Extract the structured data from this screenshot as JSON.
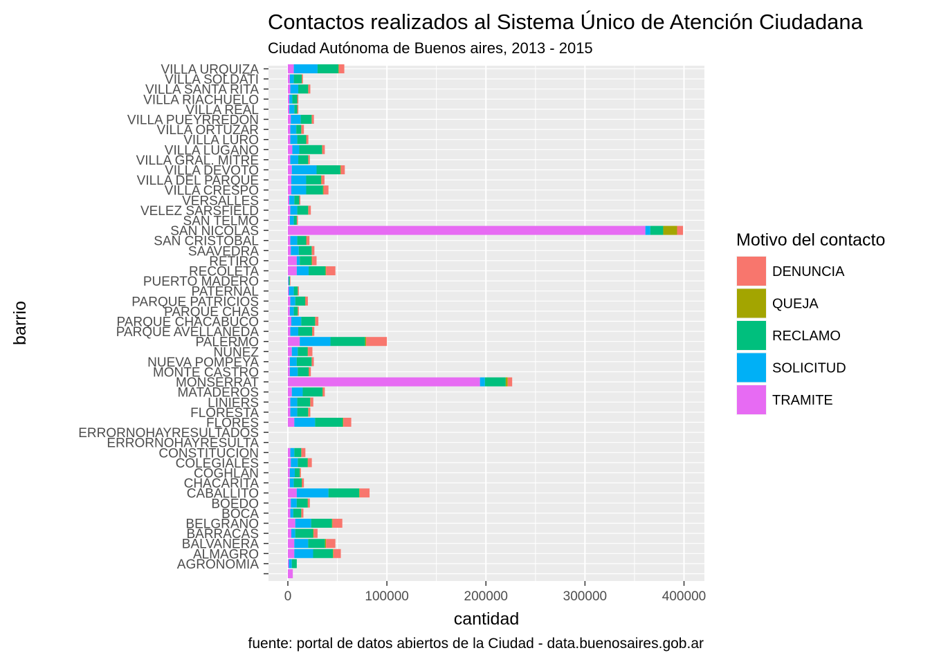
{
  "chart_data": {
    "type": "bar",
    "orientation": "horizontal",
    "stacked": true,
    "title": "Contactos realizados al Sistema Único de Atención Ciudadana",
    "subtitle": "Ciudad Autónoma de Buenos aires, 2013 - 2015",
    "xlabel": "cantidad",
    "ylabel": "barrio",
    "caption": "fuente: portal de datos abiertos de la Ciudad - data.buenosaires.gob.ar",
    "xlim": [
      0,
      420000
    ],
    "xticks": [
      0,
      100000,
      200000,
      300000,
      400000
    ],
    "xtick_labels": [
      "0",
      "100000",
      "200000",
      "300000",
      "400000"
    ],
    "grid": true,
    "legend": {
      "title": "Motivo del contacto",
      "position": "right"
    },
    "categories": [
      "",
      "AGRONOMIA",
      "ALMAGRO",
      "BALVANERA",
      "BARRACAS",
      "BELGRANO",
      "BOCA",
      "BOEDO",
      "CABALLITO",
      "CHACARITA",
      "COGHLAN",
      "COLEGIALES",
      "CONSTITUCION",
      "ERRORNOHAYRESULTA",
      "ERRORNOHAYRESULTADOS",
      "FLORES",
      "FLORESTA",
      "LINIERS",
      "MATADEROS",
      "MONSERRAT",
      "MONTE CASTRO",
      "NUEVA POMPEYA",
      "NUÑEZ",
      "PALERMO",
      "PARQUE AVELLANEDA",
      "PARQUE CHACABUCO",
      "PARQUE CHAS",
      "PARQUE PATRICIOS",
      "PATERNAL",
      "PUERTO MADERO",
      "RECOLETA",
      "RETIRO",
      "SAAVEDRA",
      "SAN CRISTOBAL",
      "SAN NICOLAS",
      "SAN TELMO",
      "VELEZ SARSFIELD",
      "VERSALLES",
      "VILLA CRESPO",
      "VILLA DEL PARQUE",
      "VILLA DEVOTO",
      "VILLA GRAL. MITRE",
      "VILLA LUGANO",
      "VILLA LURO",
      "VILLA ORTUZAR",
      "VILLA PUEYRREDON",
      "VILLA REAL",
      "VILLA RIACHUELO",
      "VILLA SANTA RITA",
      "VILLA SOLDATI",
      "VILLA URQUIZA"
    ],
    "series": [
      {
        "name": "TRAMITE",
        "color": "#E76BF3",
        "values": [
          5000,
          1000,
          6500,
          6500,
          3500,
          7500,
          2500,
          3000,
          9000,
          2000,
          2000,
          3000,
          2500,
          0,
          0,
          6500,
          2500,
          2500,
          4000,
          194000,
          2000,
          2000,
          4000,
          12000,
          2500,
          3500,
          2000,
          2500,
          1000,
          500,
          9000,
          9000,
          3000,
          2500,
          361000,
          2000,
          2500,
          1500,
          3500,
          3500,
          4000,
          2500,
          4500,
          2500,
          2500,
          3000,
          1500,
          1500,
          2500,
          2000,
          6000
        ]
      },
      {
        "name": "SOLICITUD",
        "color": "#00B0F6",
        "values": [
          0,
          3000,
          19000,
          14000,
          4000,
          16000,
          3000,
          6000,
          32000,
          4000,
          5000,
          7000,
          4000,
          0,
          0,
          21000,
          7000,
          7000,
          11000,
          5000,
          8000,
          7000,
          6000,
          31000,
          8000,
          10000,
          4000,
          5000,
          5000,
          500,
          12000,
          3000,
          8000,
          7000,
          5000,
          4000,
          7000,
          5000,
          15000,
          15000,
          25000,
          8000,
          7000,
          7000,
          6000,
          10000,
          5000,
          3000,
          8000,
          4000,
          24000
        ]
      },
      {
        "name": "RECLAMO",
        "color": "#00BF7D",
        "values": [
          0,
          5000,
          20000,
          17000,
          18000,
          21000,
          8000,
          11000,
          31000,
          8000,
          5000,
          10000,
          7000,
          0,
          0,
          28000,
          11000,
          13000,
          20000,
          21000,
          11000,
          15000,
          10000,
          35000,
          14000,
          14000,
          4000,
          10000,
          4000,
          1000,
          17000,
          12000,
          13000,
          9000,
          13000,
          3000,
          11000,
          5000,
          17000,
          15000,
          24000,
          10000,
          23000,
          9000,
          5000,
          11000,
          3000,
          5000,
          10000,
          8000,
          21000
        ]
      },
      {
        "name": "QUEJA",
        "color": "#A3A500",
        "values": [
          0,
          0,
          500,
          1000,
          500,
          500,
          200,
          200,
          500,
          200,
          200,
          200,
          200,
          0,
          0,
          500,
          200,
          200,
          300,
          2000,
          200,
          200,
          300,
          1000,
          200,
          300,
          100,
          200,
          100,
          100,
          500,
          500,
          300,
          300,
          14000,
          100,
          200,
          100,
          500,
          500,
          500,
          200,
          300,
          200,
          200,
          300,
          100,
          100,
          200,
          200,
          500
        ]
      },
      {
        "name": "DENUNCIA",
        "color": "#F8766D",
        "values": [
          0,
          0,
          7500,
          9500,
          4000,
          10000,
          2000,
          2000,
          10000,
          2000,
          1000,
          4000,
          4000,
          0,
          0,
          8000,
          2000,
          3000,
          2000,
          4500,
          2000,
          2000,
          4500,
          21000,
          2000,
          3000,
          1000,
          2500,
          1000,
          500,
          9500,
          4500,
          2500,
          3000,
          6000,
          1000,
          2500,
          1000,
          5000,
          3000,
          4000,
          1500,
          2500,
          2000,
          2500,
          2000,
          1000,
          1000,
          2000,
          1000,
          5500
        ]
      }
    ]
  }
}
